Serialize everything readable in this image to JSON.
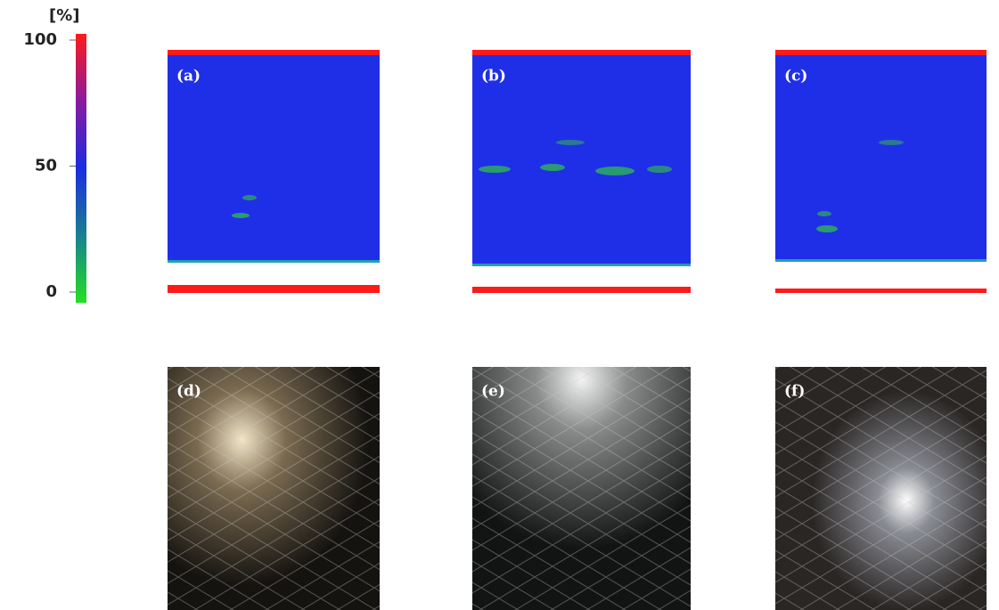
{
  "colorbar": {
    "label": "[%]",
    "range": [
      0,
      100
    ],
    "ticks": [
      0,
      50,
      100
    ]
  },
  "panels": {
    "top": [
      "(a)",
      "(b)",
      "(c)"
    ],
    "bottom": [
      "(d)",
      "(e)",
      "(f)"
    ]
  }
}
